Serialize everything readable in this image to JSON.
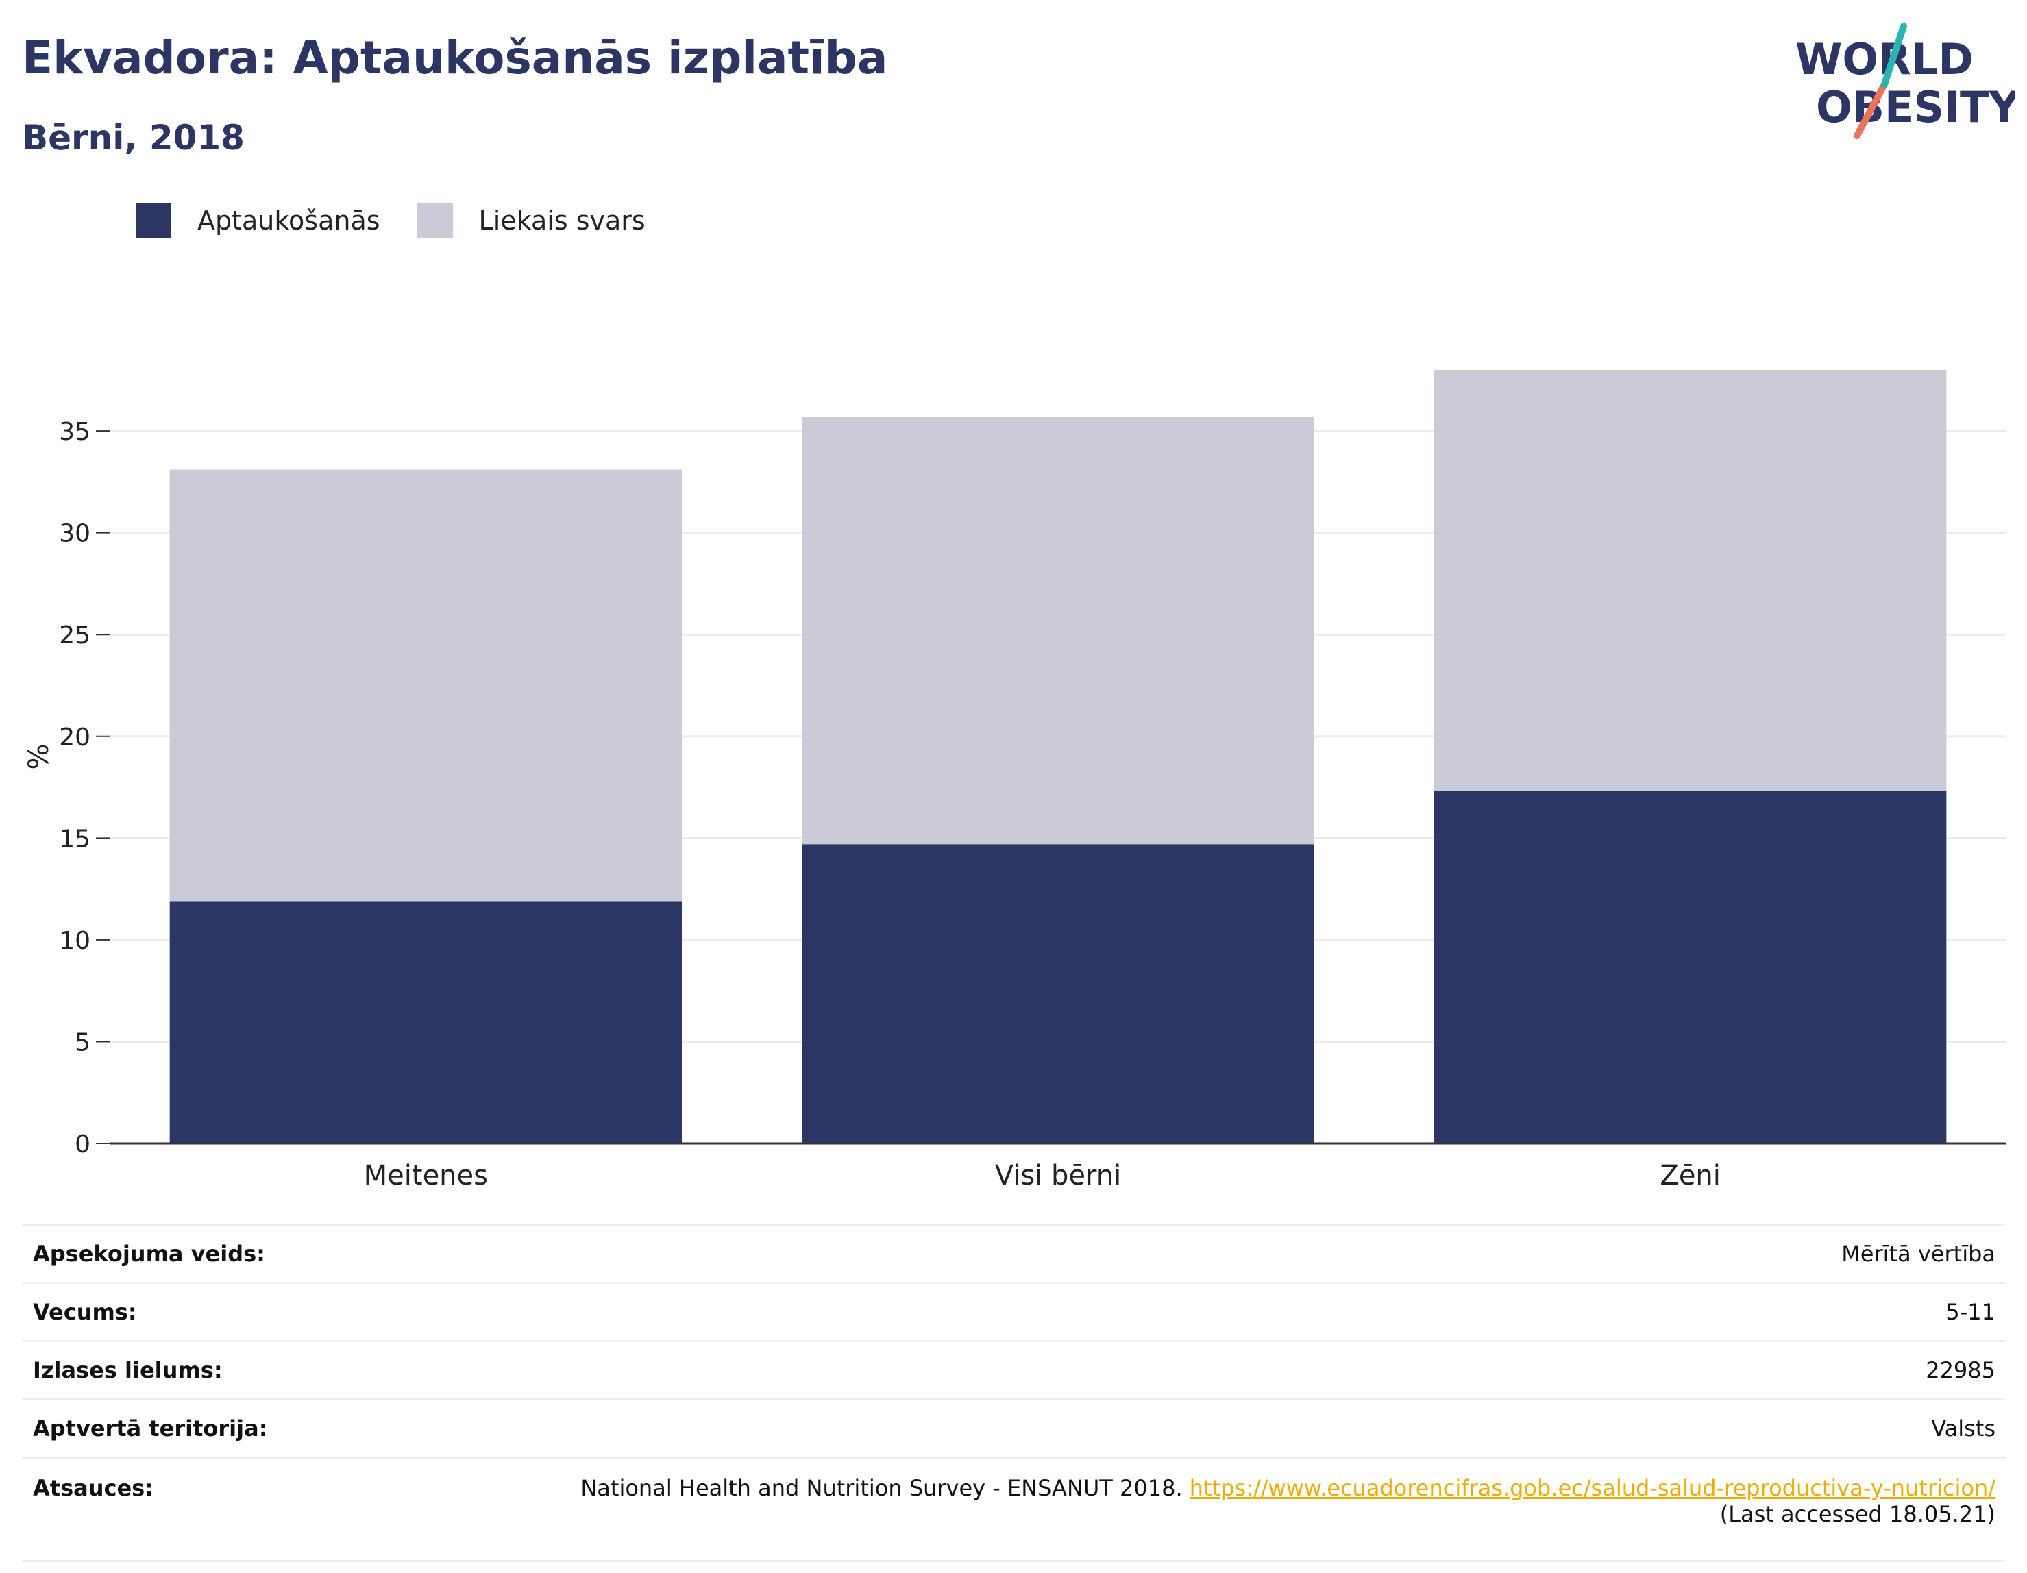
{
  "header": {
    "title": "Ekvadora: Aptaukošanās izplatība",
    "subtitle": "Bērni, 2018"
  },
  "logo": {
    "line1": "WORLD",
    "line2": "OBESITY"
  },
  "colors": {
    "obesity": "#2b3664",
    "overweight": "#cacbd7",
    "accent_teal": "#2ab5b0",
    "accent_coral": "#e9735c"
  },
  "chart_data": {
    "type": "bar",
    "stacked": true,
    "categories": [
      "Meitenes",
      "Visi bērni",
      "Zēni"
    ],
    "series": [
      {
        "name": "Aptaukošanās",
        "values": [
          11.9,
          14.7,
          17.3
        ],
        "color": "#2b3664"
      },
      {
        "name": "Liekais svars",
        "values": [
          21.2,
          21.0,
          20.7
        ],
        "color": "#cacbd7"
      }
    ],
    "ylabel": "%",
    "ylim": [
      0,
      38
    ],
    "yticks": [
      0,
      5,
      10,
      15,
      20,
      25,
      30,
      35
    ],
    "grid": true,
    "legend": "top-left"
  },
  "meta": [
    {
      "key": "Apsekojuma veids:",
      "value": "Mērītā vērtība"
    },
    {
      "key": "Vecums:",
      "value": "5-11"
    },
    {
      "key": "Izlases lielums:",
      "value": "22985"
    },
    {
      "key": "Aptvertā teritorija:",
      "value": "Valsts"
    }
  ],
  "references": {
    "key": "Atsauces:",
    "text": "National Health and Nutrition Survey - ENSANUT 2018.",
    "link": "https://www.ecuadorencifras.gob.ec/salud-salud-reproductiva-y-nutricion/",
    "accessed": "(Last accessed 18.05.21)"
  }
}
